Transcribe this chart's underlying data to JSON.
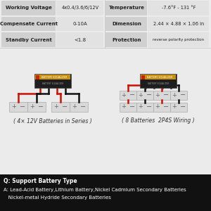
{
  "bg_color": "#ebebeb",
  "table_bg_label": "#d0d0d0",
  "table_bg_value": "#e2e2e2",
  "table_rows": [
    [
      "Working Voltage",
      "4x0.4/3.6/6/12V",
      "Temperature",
      "-7.6°F - 131 °F"
    ],
    [
      "Compensate Current",
      "0-10A",
      "Dimension",
      "2.44 × 4.88 × 1.06 in"
    ],
    [
      "Standby Current",
      "<1.8",
      "Protection",
      "reverse polarity protection"
    ]
  ],
  "left_caption": "( 4× 12V Batteries in Series )",
  "right_caption": "( 8 Batteries  2P4S Wiring )",
  "bottom_bg": "#111111",
  "bottom_text_line1": "Q: Support Battery Type",
  "bottom_text_line2": "A: Lead-Acid Battery,Lithium Battery,Nickel Cadmium Secondary Batteries",
  "bottom_text_line3": "   Nickel-metal Hydride Secondary Batteries",
  "device_body": "#1e1e1e",
  "device_accent": "#c89010",
  "wire_red": "#cc1100",
  "wire_black": "#111111",
  "battery_fill": "#d8d8d8",
  "battery_stroke": "#aaaaaa"
}
